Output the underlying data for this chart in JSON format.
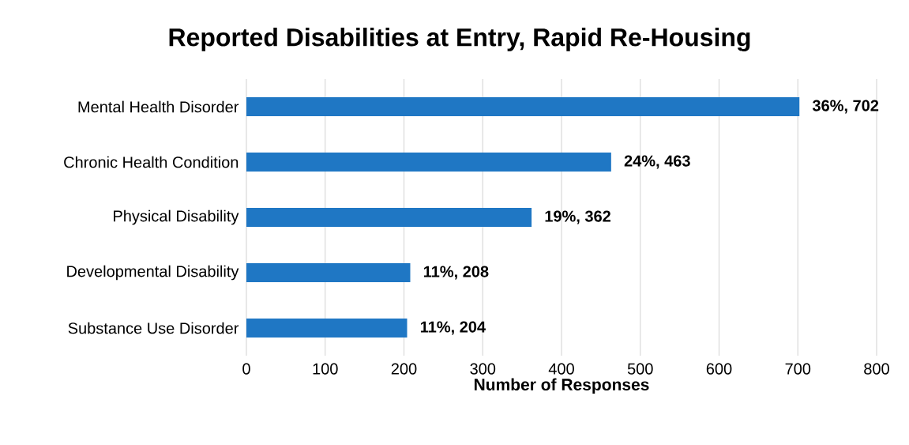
{
  "chart_data": {
    "type": "bar",
    "orientation": "horizontal",
    "title": "Reported Disabilities at Entry, Rapid Re-Housing",
    "xlabel": "Number of Responses",
    "categories": [
      "Mental Health Disorder",
      "Chronic Health Condition",
      "Physical Disability",
      "Developmental Disability",
      "Substance Use Disorder"
    ],
    "values": [
      702,
      463,
      362,
      208,
      204
    ],
    "value_labels": [
      "36%, 702",
      "24%, 463",
      "19%, 362",
      "11%, 208",
      "11%, 204"
    ],
    "color": "#1f77c4",
    "xlim": [
      0,
      800
    ],
    "xticks": [
      0,
      100,
      200,
      300,
      400,
      500,
      600,
      700,
      800
    ],
    "grid": "x"
  }
}
